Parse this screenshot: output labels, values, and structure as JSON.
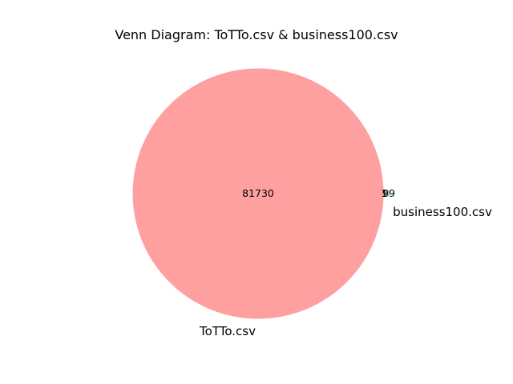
{
  "diagram": {
    "type": "venn2",
    "title": "Venn Diagram: ToTTo.csv & business100.csv",
    "sets": [
      {
        "key": "A",
        "label": "ToTTo.csv",
        "color": "#ff9999"
      },
      {
        "key": "B",
        "label": "business100.csv",
        "color": "#99cc99"
      }
    ],
    "regions": {
      "A_only": "81730",
      "B_only": "99",
      "A_and_B": "1"
    }
  }
}
